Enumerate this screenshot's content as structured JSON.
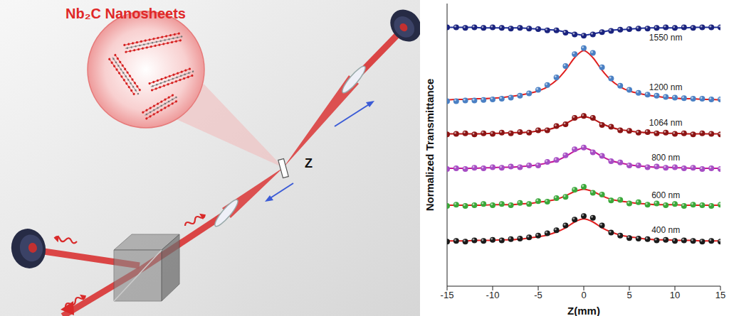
{
  "diagram": {
    "inset_title": "Nb₂C Nanosheets",
    "scan_axis": "Z"
  },
  "chart_data": {
    "type": "scatter",
    "xlabel": "Z(mm)",
    "ylabel": "Normalized Transmittance",
    "x": [
      -15,
      -14,
      -13,
      -12,
      -11,
      -10,
      -9,
      -8,
      -7,
      -6,
      -5,
      -4,
      -3,
      -2,
      -1,
      0,
      1,
      2,
      3,
      4,
      5,
      6,
      7,
      8,
      9,
      10,
      11,
      12,
      13,
      14,
      15
    ],
    "xlim": [
      -15,
      15
    ],
    "xticks": [
      -15,
      -10,
      -5,
      0,
      5,
      10,
      15
    ],
    "ylim": [
      0.25,
      5
    ],
    "yticks": [
      1,
      2,
      3,
      4
    ],
    "tick_labels": "x",
    "series": [
      {
        "name": "400 nm",
        "type": "scatter",
        "marker": "circle",
        "color": "#1a1a1a",
        "values": [
          1.0,
          1.01,
          1.0,
          1.02,
          1.01,
          1.03,
          1.02,
          1.04,
          1.05,
          1.07,
          1.1,
          1.14,
          1.19,
          1.27,
          1.37,
          1.43,
          1.4,
          1.27,
          1.15,
          1.1,
          1.06,
          1.05,
          1.04,
          1.02,
          1.03,
          1.01,
          1.02,
          1.01,
          1.0,
          1.01,
          1.0
        ]
      },
      {
        "type": "line",
        "line_style": "solid",
        "color": "#e02020",
        "values": [
          1.01,
          1.01,
          1.01,
          1.02,
          1.02,
          1.02,
          1.03,
          1.03,
          1.04,
          1.06,
          1.08,
          1.11,
          1.16,
          1.23,
          1.33,
          1.38,
          1.33,
          1.23,
          1.16,
          1.11,
          1.08,
          1.06,
          1.04,
          1.03,
          1.03,
          1.02,
          1.02,
          1.02,
          1.01,
          1.01,
          1.01
        ]
      },
      {
        "name": "600 nm",
        "type": "scatter",
        "marker": "circle",
        "color": "#3aa83a",
        "values": [
          1.6,
          1.62,
          1.6,
          1.61,
          1.63,
          1.61,
          1.63,
          1.61,
          1.65,
          1.63,
          1.68,
          1.67,
          1.73,
          1.75,
          1.87,
          1.92,
          1.82,
          1.79,
          1.69,
          1.7,
          1.64,
          1.66,
          1.62,
          1.64,
          1.61,
          1.63,
          1.6,
          1.62,
          1.61,
          1.6,
          1.62
        ]
      },
      {
        "type": "line",
        "line_style": "solid",
        "color": "#e02020",
        "values": [
          1.61,
          1.61,
          1.61,
          1.61,
          1.61,
          1.62,
          1.62,
          1.62,
          1.63,
          1.64,
          1.66,
          1.68,
          1.71,
          1.77,
          1.84,
          1.88,
          1.84,
          1.77,
          1.71,
          1.68,
          1.66,
          1.64,
          1.63,
          1.62,
          1.62,
          1.62,
          1.61,
          1.61,
          1.61,
          1.61,
          1.61
        ]
      },
      {
        "name": "800 nm",
        "type": "scatter",
        "marker": "circle",
        "color": "#a64dc4",
        "values": [
          2.22,
          2.23,
          2.22,
          2.24,
          2.23,
          2.25,
          2.24,
          2.26,
          2.25,
          2.28,
          2.28,
          2.34,
          2.37,
          2.45,
          2.55,
          2.58,
          2.5,
          2.44,
          2.35,
          2.33,
          2.28,
          2.28,
          2.25,
          2.26,
          2.24,
          2.25,
          2.23,
          2.24,
          2.22,
          2.23,
          2.22
        ]
      },
      {
        "type": "line",
        "line_style": "solid",
        "color": "#c2189a",
        "values": [
          2.23,
          2.23,
          2.23,
          2.23,
          2.24,
          2.24,
          2.25,
          2.25,
          2.26,
          2.27,
          2.29,
          2.32,
          2.36,
          2.43,
          2.52,
          2.57,
          2.52,
          2.43,
          2.36,
          2.32,
          2.29,
          2.27,
          2.26,
          2.25,
          2.25,
          2.24,
          2.24,
          2.23,
          2.23,
          2.23,
          2.23
        ]
      },
      {
        "name": "1064 nm",
        "type": "scatter",
        "marker": "circle",
        "color": "#8b1414",
        "values": [
          2.8,
          2.81,
          2.82,
          2.8,
          2.82,
          2.81,
          2.83,
          2.82,
          2.84,
          2.83,
          2.87,
          2.87,
          2.94,
          2.97,
          3.08,
          3.11,
          3.08,
          2.96,
          2.93,
          2.87,
          2.86,
          2.83,
          2.84,
          2.82,
          2.83,
          2.81,
          2.82,
          2.8,
          2.82,
          2.81,
          2.8
        ]
      },
      {
        "type": "line",
        "line_style": "solid",
        "color": "#b81515",
        "values": [
          2.81,
          2.81,
          2.81,
          2.81,
          2.81,
          2.82,
          2.82,
          2.83,
          2.83,
          2.84,
          2.86,
          2.88,
          2.92,
          2.98,
          3.06,
          3.1,
          3.06,
          2.98,
          2.92,
          2.88,
          2.86,
          2.84,
          2.83,
          2.83,
          2.82,
          2.82,
          2.81,
          2.81,
          2.81,
          2.81,
          2.81
        ]
      },
      {
        "name": "1200 nm",
        "type": "scatter",
        "marker": "circle",
        "color": "#4a80c4",
        "values": [
          3.36,
          3.36,
          3.37,
          3.37,
          3.38,
          3.39,
          3.4,
          3.42,
          3.45,
          3.49,
          3.55,
          3.63,
          3.76,
          3.95,
          4.15,
          4.25,
          4.17,
          3.93,
          3.74,
          3.62,
          3.55,
          3.5,
          3.47,
          3.45,
          3.43,
          3.42,
          3.41,
          3.4,
          3.4,
          3.39,
          3.39
        ]
      },
      {
        "type": "line",
        "line_style": "solid",
        "color": "#e02020",
        "values": [
          3.38,
          3.39,
          3.39,
          3.4,
          3.4,
          3.41,
          3.42,
          3.44,
          3.46,
          3.49,
          3.53,
          3.6,
          3.71,
          3.88,
          4.09,
          4.21,
          4.09,
          3.88,
          3.71,
          3.6,
          3.53,
          3.49,
          3.46,
          3.44,
          3.42,
          3.41,
          3.4,
          3.4,
          3.39,
          3.39,
          3.38
        ]
      },
      {
        "name": "1550 nm",
        "type": "scatter",
        "marker": "circle",
        "color": "#1a237e",
        "values": [
          4.6,
          4.6,
          4.59,
          4.6,
          4.59,
          4.6,
          4.59,
          4.58,
          4.59,
          4.58,
          4.57,
          4.55,
          4.55,
          4.51,
          4.48,
          4.46,
          4.48,
          4.52,
          4.54,
          4.56,
          4.57,
          4.58,
          4.58,
          4.59,
          4.6,
          4.59,
          4.6,
          4.59,
          4.6,
          4.6,
          4.6
        ]
      },
      {
        "type": "line",
        "line_style": "solid",
        "color": "#1f2f9a",
        "values": [
          4.6,
          4.6,
          4.6,
          4.6,
          4.59,
          4.59,
          4.59,
          4.59,
          4.59,
          4.58,
          4.57,
          4.56,
          4.55,
          4.52,
          4.49,
          4.47,
          4.49,
          4.52,
          4.55,
          4.56,
          4.57,
          4.58,
          4.59,
          4.59,
          4.59,
          4.59,
          4.59,
          4.6,
          4.6,
          4.6,
          4.6
        ]
      }
    ]
  }
}
